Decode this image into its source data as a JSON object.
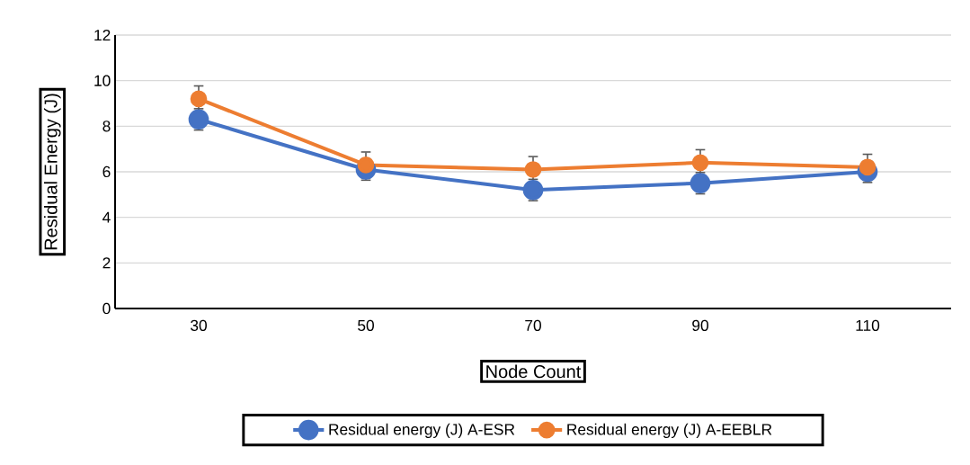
{
  "chart_data": {
    "type": "line",
    "xlabel": "Node Count",
    "ylabel": "Residual Energy (J)",
    "categories": [
      "30",
      "50",
      "70",
      "90",
      "110"
    ],
    "series": [
      {
        "name": "Residual energy (J) A-ESR",
        "color": "#4472c4",
        "values": [
          8.3,
          6.1,
          5.2,
          5.5,
          6.0
        ],
        "errors": [
          0.5,
          0.5,
          0.5,
          0.5,
          0.5
        ]
      },
      {
        "name": "Residual energy (J) A-EEBLR",
        "color": "#ed7d31",
        "values": [
          9.2,
          6.3,
          6.1,
          6.4,
          6.2
        ],
        "errors": [
          0.6,
          0.6,
          0.6,
          0.6,
          0.6
        ]
      }
    ],
    "ylim": [
      0,
      12
    ],
    "yticks": [
      0,
      2,
      4,
      6,
      8,
      10,
      12
    ],
    "grid": "y",
    "legend": "bottom",
    "marker": "circle",
    "line_style": "solid"
  }
}
